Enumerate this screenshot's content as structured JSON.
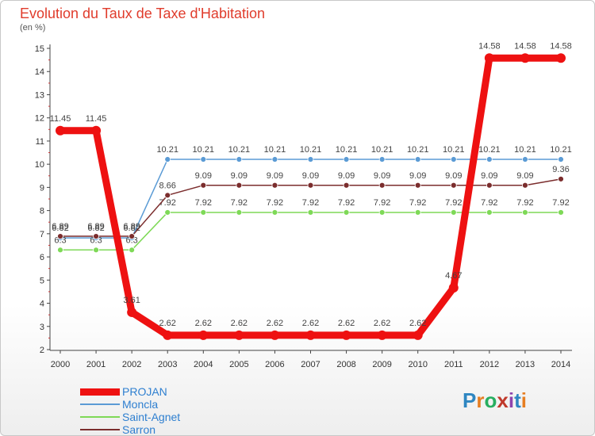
{
  "title": "Evolution du Taux de Taxe d'Habitation",
  "subtitle": "(en %)",
  "logo": {
    "text": "Proxiti",
    "letters": [
      "P",
      "r",
      "o",
      "x",
      "i",
      "t",
      "i"
    ],
    "colors": [
      "#2e86c1",
      "#e67e22",
      "#27ae60",
      "#c0392b",
      "#8e44ad",
      "#2e86c1",
      "#e67e22"
    ]
  },
  "chart_data": {
    "type": "line",
    "title": "Evolution du Taux de Taxe d'Habitation",
    "ylabel": "(en %)",
    "xlabel": "",
    "categories": [
      "2000",
      "2001",
      "2002",
      "2003",
      "2004",
      "2005",
      "2006",
      "2007",
      "2008",
      "2009",
      "2010",
      "2011",
      "2012",
      "2013",
      "2014"
    ],
    "ylim": [
      2,
      15
    ],
    "yticks": [
      2,
      3,
      4,
      5,
      6,
      7,
      8,
      9,
      10,
      11,
      12,
      13,
      14,
      15
    ],
    "grid": false,
    "legend_position": "bottom-left",
    "series": [
      {
        "name": "Moncla",
        "color": "#5b9bd5",
        "values": [
          6.82,
          6.82,
          6.82,
          10.21,
          10.21,
          10.21,
          10.21,
          10.21,
          10.21,
          10.21,
          10.21,
          10.21,
          10.21,
          10.21,
          10.21
        ],
        "labels": [
          "6.82",
          "6.82",
          "6.82",
          "10.21",
          "10.21",
          "10.21",
          "10.21",
          "10.21",
          "10.21",
          "10.21",
          "10.21",
          "10.21",
          "10.21",
          "10.21",
          "10.21"
        ]
      },
      {
        "name": "Saint-Agnet",
        "color": "#7ed957",
        "values": [
          6.3,
          6.3,
          6.3,
          7.92,
          7.92,
          7.92,
          7.92,
          7.92,
          7.92,
          7.92,
          7.92,
          7.92,
          7.92,
          7.92,
          7.92
        ],
        "labels": [
          "6.3",
          "6.3",
          "6.3",
          "7.92",
          "7.92",
          "7.92",
          "7.92",
          "7.92",
          "7.92",
          "7.92",
          "7.92",
          "7.92",
          "7.92",
          "7.92",
          "7.92"
        ]
      },
      {
        "name": "Sarron",
        "color": "#7b2d2d",
        "values": [
          6.89,
          6.89,
          6.89,
          8.66,
          9.09,
          9.09,
          9.09,
          9.09,
          9.09,
          9.09,
          9.09,
          9.09,
          9.09,
          9.09,
          9.36
        ],
        "labels": [
          "6.89",
          "6.89",
          "6.89",
          "8.66",
          "9.09",
          "9.09",
          "9.09",
          "9.09",
          "9.09",
          "9.09",
          "9.09",
          "9.09",
          "9.09",
          "9.09",
          "9.36"
        ]
      },
      {
        "name": "PROJAN",
        "color": "#ee1111",
        "values": [
          11.45,
          11.45,
          3.61,
          2.62,
          2.62,
          2.62,
          2.62,
          2.62,
          2.62,
          2.62,
          2.62,
          4.67,
          14.58,
          14.58,
          14.58
        ],
        "labels": [
          "11.45",
          "11.45",
          "3.61",
          "2.62",
          "2.62",
          "2.62",
          "2.62",
          "2.62",
          "2.62",
          "2.62",
          "2.62",
          "4.67",
          "14.58",
          "14.58",
          "14.58"
        ]
      }
    ],
    "legend": [
      {
        "name": "PROJAN",
        "color": "#ee1111"
      },
      {
        "name": "Moncla",
        "color": "#5b9bd5"
      },
      {
        "name": "Saint-Agnet",
        "color": "#7ed957"
      },
      {
        "name": "Sarron",
        "color": "#7b2d2d"
      }
    ]
  }
}
